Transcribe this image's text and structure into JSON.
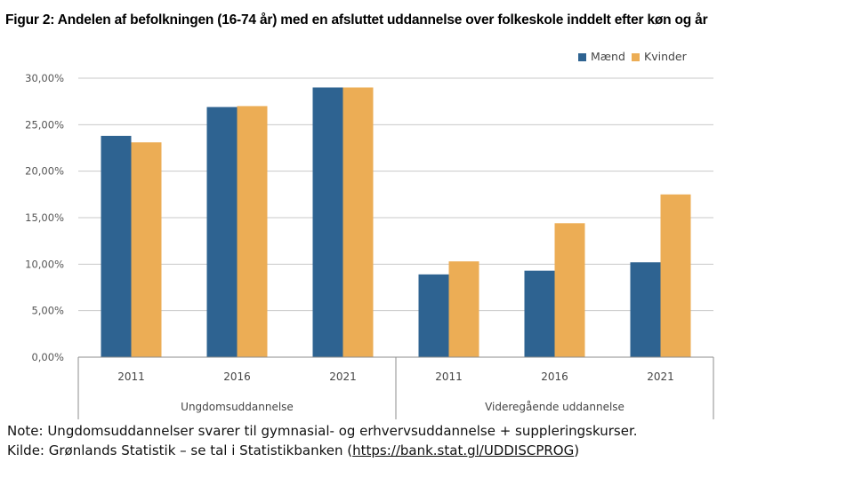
{
  "title": "Figur 2: Andelen af befolkningen (16-74 år) med en afsluttet uddannelse over folkeskole inddelt efter køn og år",
  "chart_data": {
    "type": "bar",
    "groups": [
      {
        "label": "Ungdomsuddannelse",
        "categories": [
          "2011",
          "2016",
          "2021"
        ]
      },
      {
        "label": "Videregående uddannelse",
        "categories": [
          "2011",
          "2016",
          "2021"
        ]
      }
    ],
    "series": [
      {
        "name": "Mænd",
        "color": "#2e6391",
        "values": [
          23.8,
          26.9,
          29.0,
          8.9,
          9.3,
          10.2
        ]
      },
      {
        "name": "Kvinder",
        "color": "#ecad55",
        "values": [
          23.1,
          27.0,
          29.0,
          10.3,
          14.4,
          17.5
        ]
      }
    ],
    "ylim": [
      0,
      30
    ],
    "yticks": [
      "0,00%",
      "5,00%",
      "10,00%",
      "15,00%",
      "20,00%",
      "25,00%",
      "30,00%"
    ],
    "legend_position": "top-right",
    "grid": true
  },
  "note": "Note: Ungdomsuddannelser svarer til gymnasial- og erhvervsuddannelse + suppleringskurser.",
  "source_prefix": "Kilde: Grønlands Statistik – se tal i Statistikbanken (",
  "source_url": "https://bank.stat.gl/UDDISCPROG",
  "source_suffix": ")"
}
